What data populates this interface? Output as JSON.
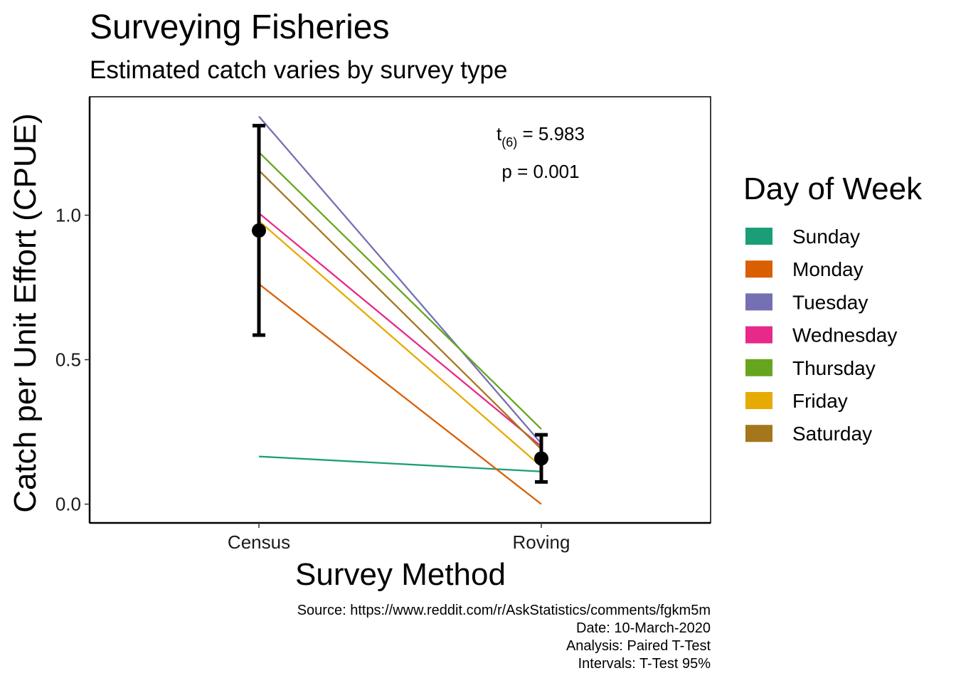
{
  "chart_data": {
    "type": "line",
    "title": "Surveying Fisheries",
    "subtitle": "Estimated catch varies by survey type",
    "xlabel": "Survey Method",
    "ylabel": "Catch per Unit Effort (CPUE)",
    "categories": [
      "Census",
      "Roving"
    ],
    "ylim": [
      -0.065,
      1.41
    ],
    "yticks": [
      0.0,
      0.5,
      1.0
    ],
    "ytick_labels": [
      "0.0",
      "0.5",
      "1.0"
    ],
    "grid": false,
    "legend": {
      "title": "Day of Week",
      "placement": "right"
    },
    "series": [
      {
        "name": "Sunday",
        "color": "#1B9E77",
        "values": [
          0.165,
          0.113
        ]
      },
      {
        "name": "Monday",
        "color": "#D95F02",
        "values": [
          0.762,
          0.0
        ]
      },
      {
        "name": "Tuesday",
        "color": "#7570B3",
        "values": [
          1.342,
          0.21
        ]
      },
      {
        "name": "Wednesday",
        "color": "#E7298A",
        "values": [
          1.007,
          0.2
        ]
      },
      {
        "name": "Thursday",
        "color": "#66A61E",
        "values": [
          1.218,
          0.26
        ]
      },
      {
        "name": "Friday",
        "color": "#E6AB02",
        "values": [
          0.98,
          0.13
        ]
      },
      {
        "name": "Saturday",
        "color": "#A6761D",
        "values": [
          1.155,
          0.19
        ]
      }
    ],
    "summary": [
      {
        "category": "Census",
        "mean": 0.947,
        "lower": 0.585,
        "upper": 1.31
      },
      {
        "category": "Roving",
        "mean": 0.158,
        "lower": 0.077,
        "upper": 0.24
      }
    ],
    "annotations": {
      "t_base": "t",
      "t_sub": "(6)",
      "t_value": " = 5.983",
      "p_text": "p = 0.001"
    },
    "caption": [
      "Source: https://www.reddit.com/r/AskStatistics/comments/fgkm5m",
      "Date: 10-March-2020",
      "Analysis: Paired T-Test",
      "Intervals: T-Test 95%"
    ]
  }
}
